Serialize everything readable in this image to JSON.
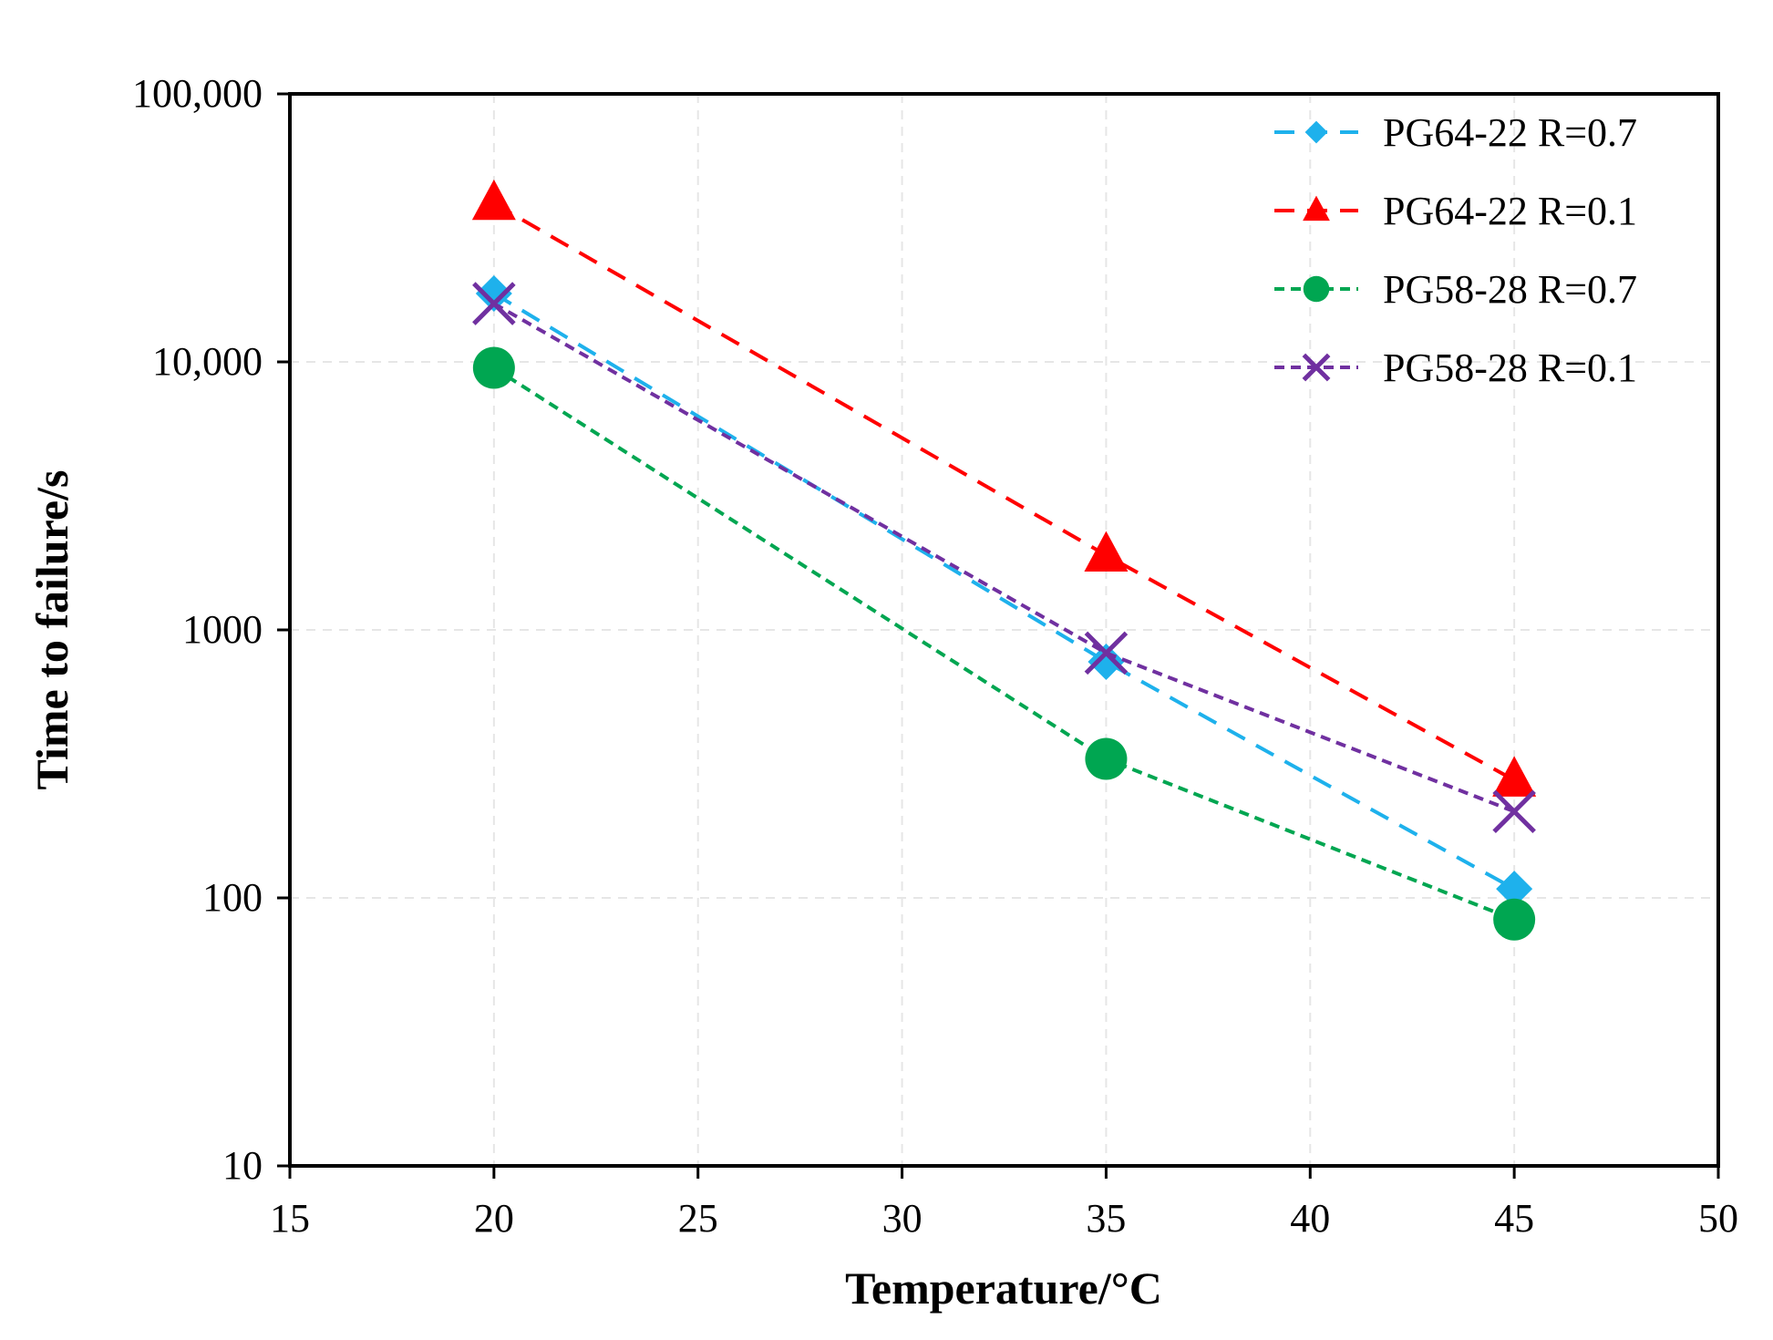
{
  "chart_data": {
    "type": "line",
    "title": "",
    "xlabel": "Temperature/°C",
    "ylabel": "Time to failure/s",
    "xlim": [
      15,
      50
    ],
    "ylim": [
      10,
      100000
    ],
    "yscale": "log",
    "grid": true,
    "legend_position": "top-right",
    "x_ticks": [
      15,
      20,
      25,
      30,
      35,
      40,
      45,
      50
    ],
    "x_tick_labels": [
      "15",
      "20",
      "25",
      "30",
      "35",
      "40",
      "45",
      "50"
    ],
    "y_ticks": [
      10,
      100,
      1000,
      10000,
      100000
    ],
    "y_tick_labels": [
      "10",
      "100",
      "1000",
      "10,000",
      "100,000"
    ],
    "series": [
      {
        "name": "PG64-22 R=0.7",
        "color": "#1EB1EC",
        "marker": "diamond",
        "dash": "long",
        "x": [
          20,
          35,
          45
        ],
        "y": [
          18000,
          760,
          108
        ]
      },
      {
        "name": "PG64-22 R=0.1",
        "color": "#FF0000",
        "marker": "triangle",
        "dash": "long",
        "x": [
          20,
          35,
          45
        ],
        "y": [
          39000,
          1900,
          275
        ]
      },
      {
        "name": "PG58-28 R=0.7",
        "color": "#00A651",
        "marker": "circle",
        "dash": "short",
        "x": [
          20,
          35,
          45
        ],
        "y": [
          9500,
          330,
          83
        ]
      },
      {
        "name": "PG58-28 R=0.1",
        "color": "#7030A0",
        "marker": "x",
        "dash": "short",
        "x": [
          20,
          35,
          45
        ],
        "y": [
          16500,
          820,
          210
        ]
      }
    ]
  }
}
